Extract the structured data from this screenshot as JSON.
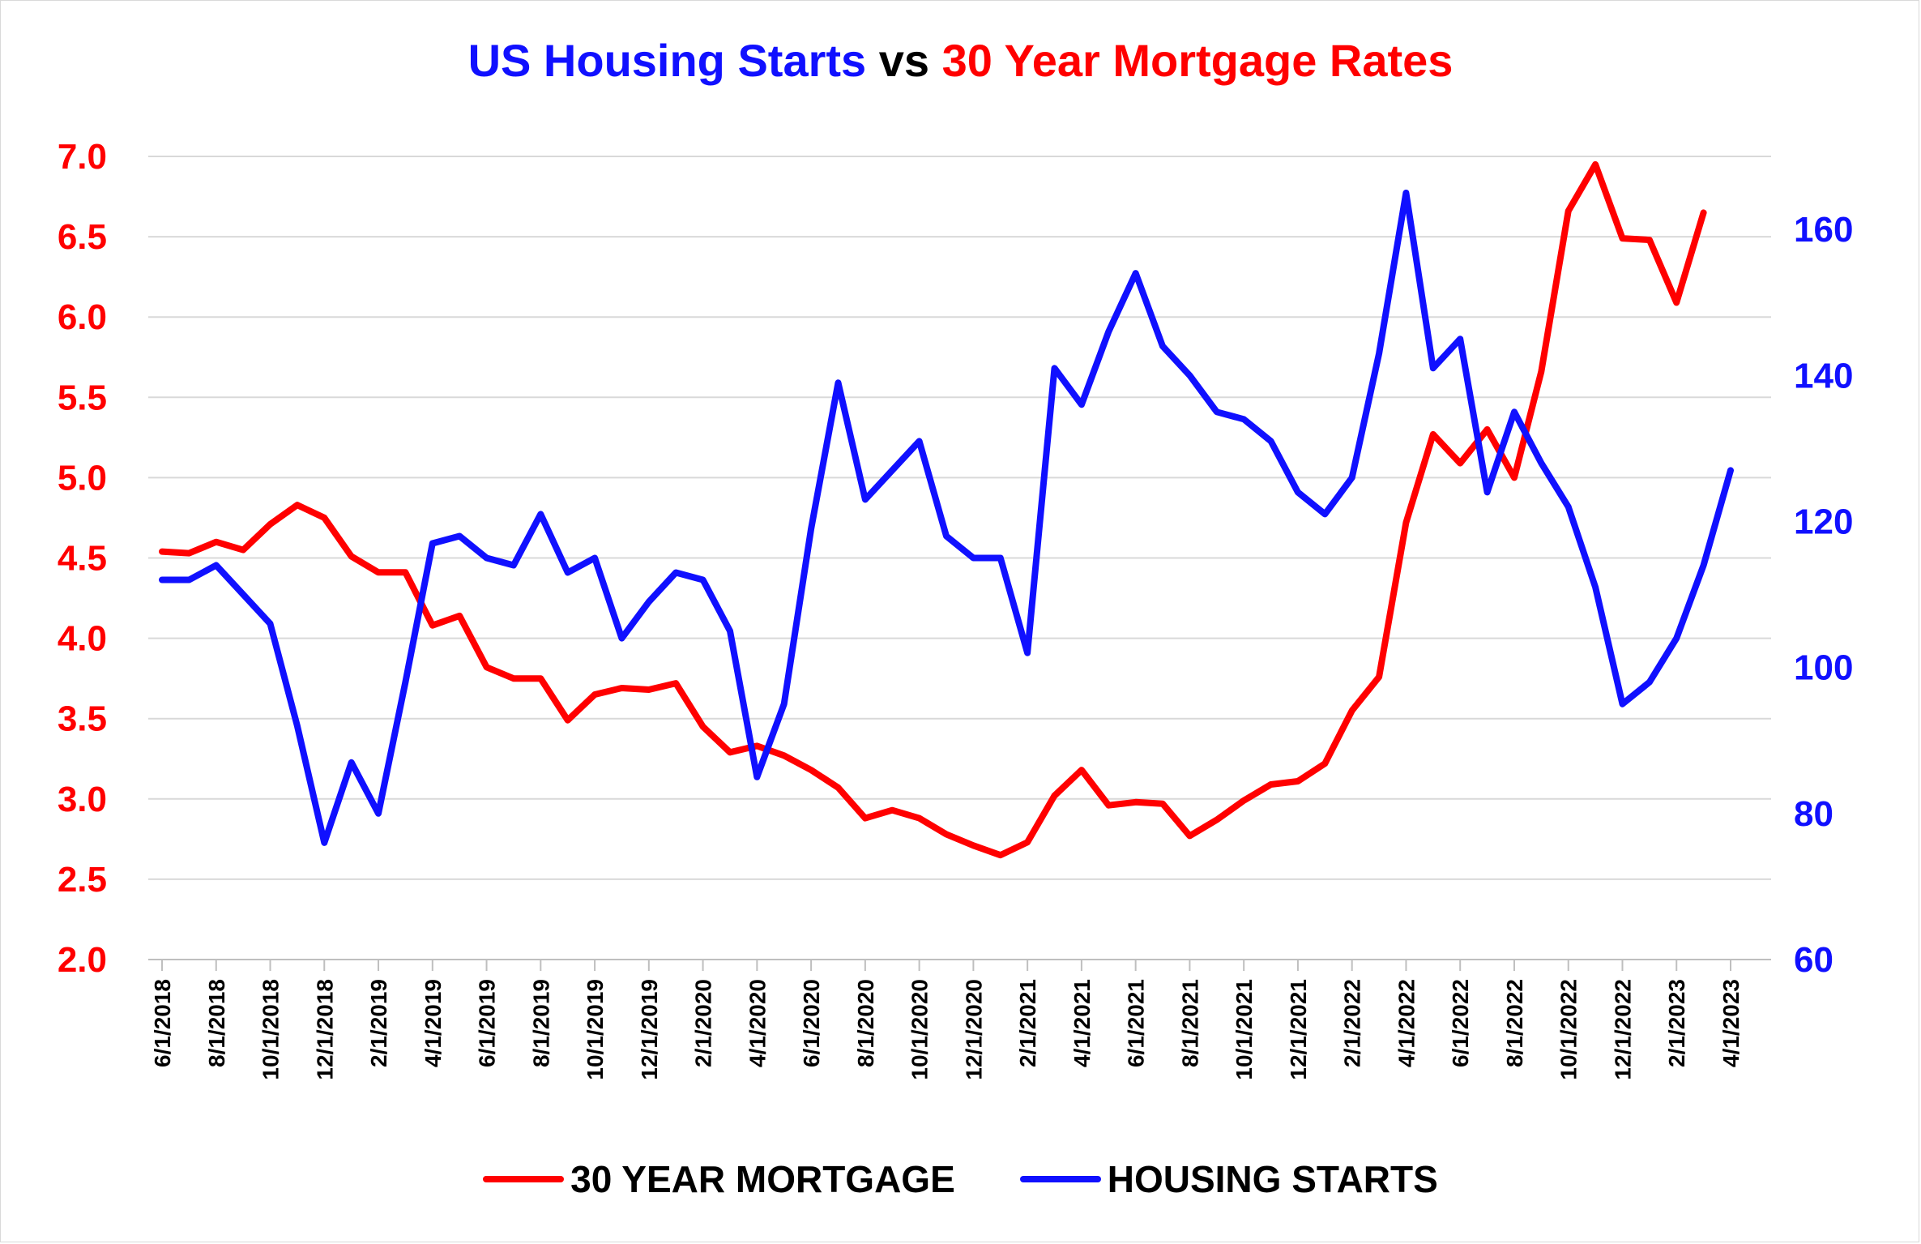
{
  "title": {
    "part1": "US Housing Starts",
    "part2": "vs",
    "part3": "30 Year Mortgage Rates",
    "color1": "#1010ff",
    "color2": "#000000",
    "color3": "#ff0000"
  },
  "legend": {
    "mortgage_label": "30 YEAR MORTGAGE",
    "starts_label": "HOUSING STARTS"
  },
  "chart_data": {
    "type": "line",
    "x": [
      "6/1/2018",
      "7/1/2018",
      "8/1/2018",
      "9/1/2018",
      "10/1/2018",
      "11/1/2018",
      "12/1/2018",
      "1/1/2019",
      "2/1/2019",
      "3/1/2019",
      "4/1/2019",
      "5/1/2019",
      "6/1/2019",
      "7/1/2019",
      "8/1/2019",
      "9/1/2019",
      "10/1/2019",
      "11/1/2019",
      "12/1/2019",
      "1/1/2020",
      "2/1/2020",
      "3/1/2020",
      "4/1/2020",
      "5/1/2020",
      "6/1/2020",
      "7/1/2020",
      "8/1/2020",
      "9/1/2020",
      "10/1/2020",
      "11/1/2020",
      "12/1/2020",
      "1/1/2021",
      "2/1/2021",
      "3/1/2021",
      "4/1/2021",
      "5/1/2021",
      "6/1/2021",
      "7/1/2021",
      "8/1/2021",
      "9/1/2021",
      "10/1/2021",
      "11/1/2021",
      "12/1/2021",
      "1/1/2022",
      "2/1/2022",
      "3/1/2022",
      "4/1/2022",
      "5/1/2022",
      "6/1/2022",
      "7/1/2022",
      "8/1/2022",
      "9/1/2022",
      "10/1/2022",
      "11/1/2022",
      "12/1/2022",
      "1/1/2023",
      "2/1/2023",
      "3/1/2023",
      "4/1/2023"
    ],
    "x_tick_labels": [
      "6/1/2018",
      "8/1/2018",
      "10/1/2018",
      "12/1/2018",
      "2/1/2019",
      "4/1/2019",
      "6/1/2019",
      "8/1/2019",
      "10/1/2019",
      "12/1/2019",
      "2/1/2020",
      "4/1/2020",
      "6/1/2020",
      "8/1/2020",
      "10/1/2020",
      "12/1/2020",
      "2/1/2021",
      "4/1/2021",
      "6/1/2021",
      "8/1/2021",
      "10/1/2021",
      "12/1/2021",
      "2/1/2022",
      "4/1/2022",
      "6/1/2022",
      "8/1/2022",
      "10/1/2022",
      "12/1/2022",
      "2/1/2023",
      "4/1/2023"
    ],
    "series": [
      {
        "name": "30 YEAR MORTGAGE",
        "axis": "left",
        "color": "#ff0000",
        "values": [
          4.54,
          4.53,
          4.6,
          4.55,
          4.71,
          4.83,
          4.75,
          4.51,
          4.41,
          4.41,
          4.08,
          4.14,
          3.82,
          3.75,
          3.75,
          3.49,
          3.65,
          3.69,
          3.68,
          3.72,
          3.45,
          3.29,
          3.33,
          3.27,
          3.18,
          3.07,
          2.88,
          2.93,
          2.88,
          2.78,
          2.71,
          2.65,
          2.73,
          3.02,
          3.18,
          2.96,
          2.98,
          2.97,
          2.77,
          2.87,
          2.99,
          3.09,
          3.11,
          3.22,
          3.55,
          3.76,
          4.72,
          5.27,
          5.09,
          5.3,
          5.0,
          5.66,
          6.66,
          6.95,
          6.49,
          6.48,
          6.09,
          6.65,
          null
        ]
      },
      {
        "name": "HOUSING STARTS",
        "axis": "right",
        "color": "#1010ff",
        "values": [
          112,
          112,
          114,
          110,
          106,
          92,
          76,
          87,
          80,
          98,
          117,
          118,
          115,
          114,
          121,
          113,
          115,
          104,
          109,
          113,
          112,
          105,
          85,
          95,
          119,
          139,
          123,
          127,
          131,
          118,
          115,
          115,
          102,
          141,
          136,
          146,
          154,
          144,
          140,
          135,
          134,
          131,
          124,
          121,
          126,
          143,
          165,
          141,
          145,
          124,
          135,
          128,
          122,
          111,
          95,
          98,
          104,
          114,
          127
        ]
      }
    ],
    "y_left": {
      "min": 2.0,
      "max": 7.0,
      "ticks": [
        "2.0",
        "2.5",
        "3.0",
        "3.5",
        "4.0",
        "4.5",
        "5.0",
        "5.5",
        "6.0",
        "6.5",
        "7.0"
      ],
      "color": "#ff0000"
    },
    "y_right": {
      "min": 60,
      "max": 170,
      "ticks": [
        "60",
        "80",
        "100",
        "120",
        "140",
        "160"
      ],
      "color": "#1010ff"
    },
    "grid": true,
    "legend_position": "bottom"
  }
}
